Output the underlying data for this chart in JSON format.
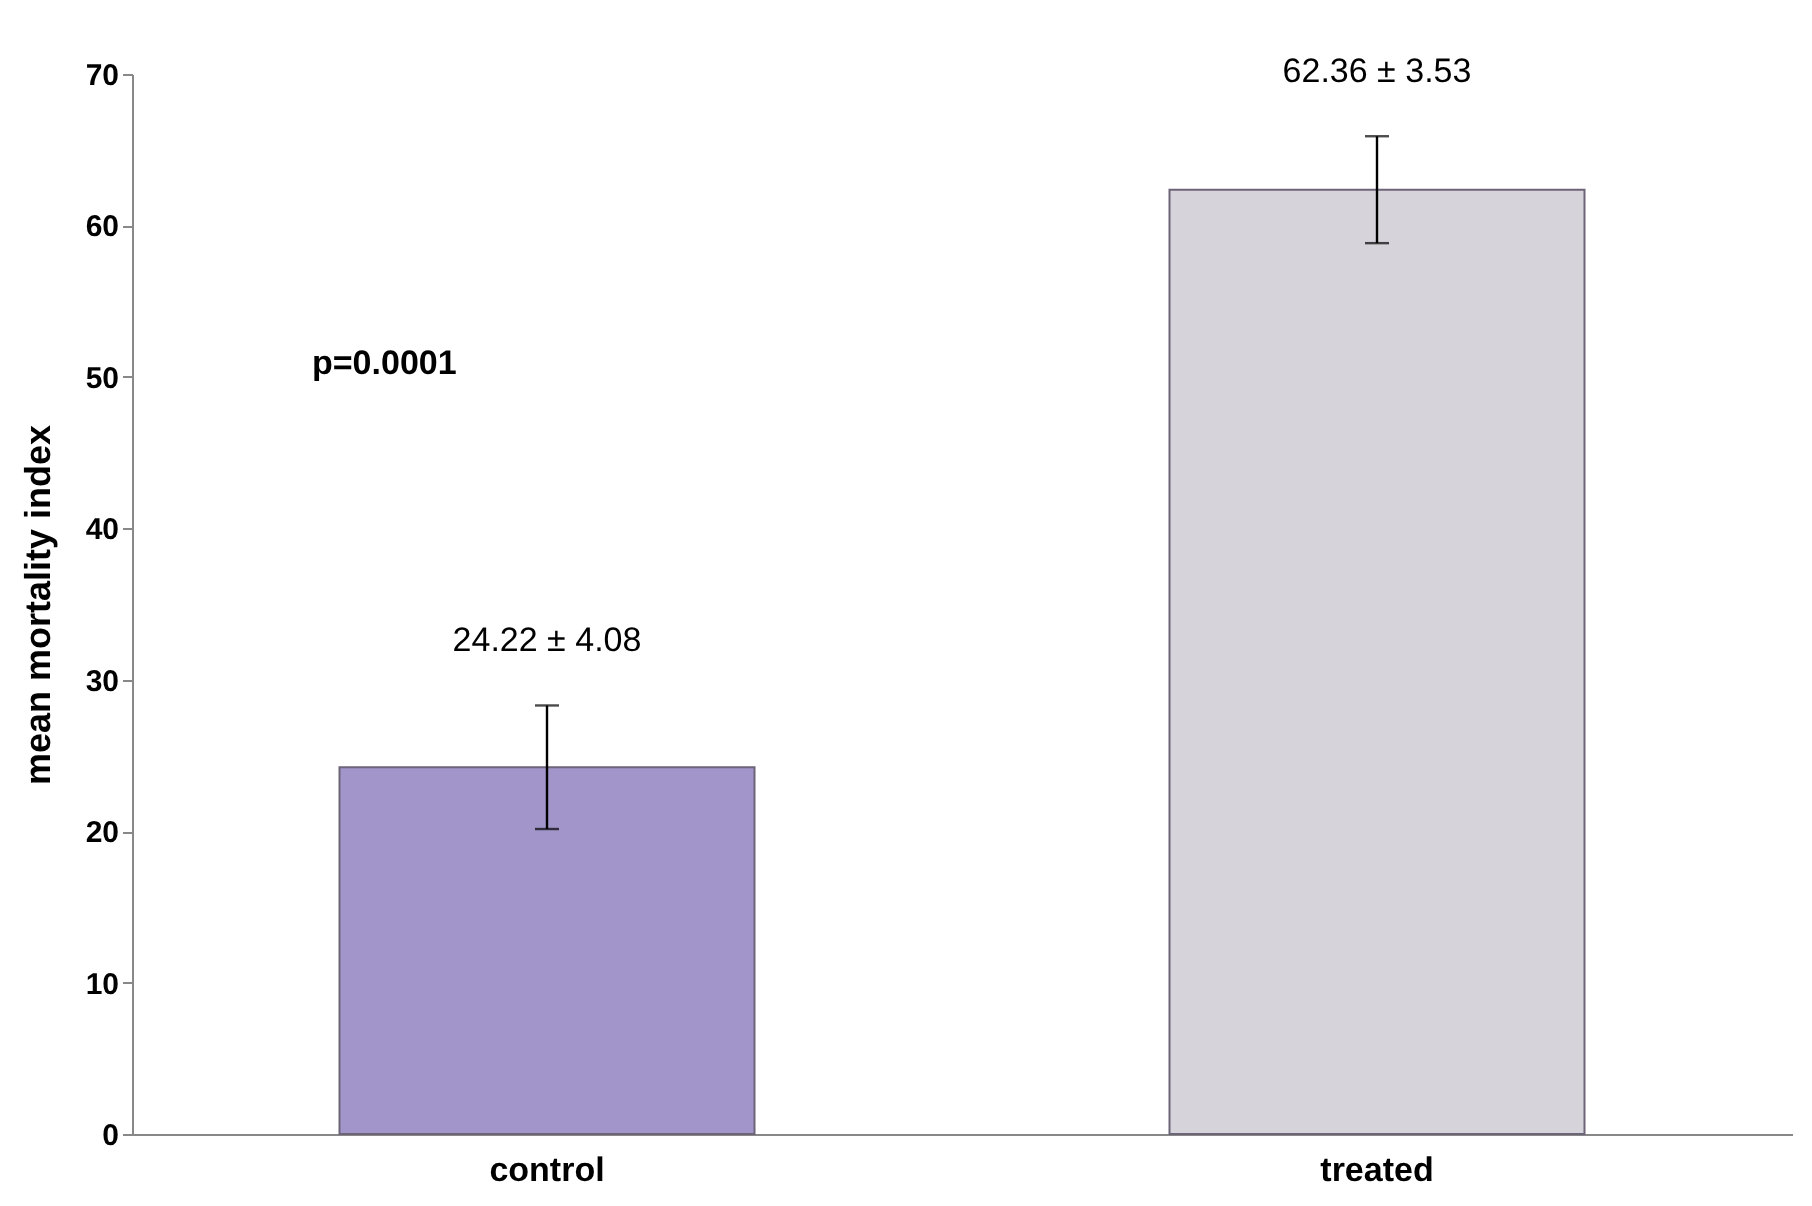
{
  "chart_data": {
    "type": "bar",
    "ylabel": "mean mortality index",
    "categories": [
      "control",
      "treated"
    ],
    "values": [
      24.22,
      62.36
    ],
    "errors": [
      4.08,
      3.53
    ],
    "value_labels": [
      "24.22 ± 4.08",
      "62.36 ± 3.53"
    ],
    "colors": [
      "#a195c9",
      "#d6d3da"
    ],
    "ylim": [
      0,
      70
    ],
    "yticks": [
      0,
      10,
      20,
      30,
      40,
      50,
      60,
      70
    ],
    "grid": false,
    "annotations": [
      "p=0.0001"
    ]
  }
}
